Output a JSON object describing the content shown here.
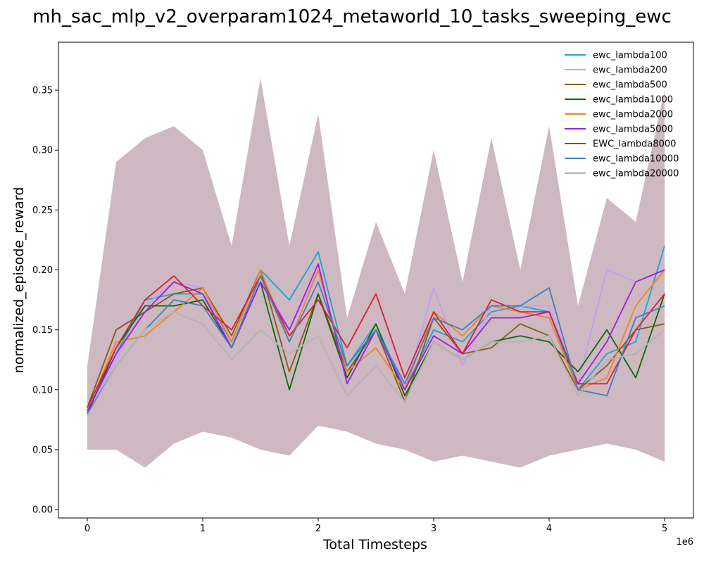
{
  "chart_data": {
    "type": "line",
    "title": "mh_sac_mlp_v2_overparam1024_metaworld_10_tasks_sweeping_ewc",
    "xlabel": "Total Timesteps",
    "ylabel": "normalized_episode_reward",
    "x_offset_text": "1e6",
    "xlim": [
      -0.25,
      5.25
    ],
    "ylim": [
      -0.007,
      0.39
    ],
    "x_ticks": [
      0,
      1,
      2,
      3,
      4,
      5
    ],
    "x_tick_labels": [
      "0",
      "1",
      "2",
      "3",
      "4",
      "5"
    ],
    "y_ticks": [
      0.0,
      0.05,
      0.1,
      0.15,
      0.2,
      0.25,
      0.3,
      0.35
    ],
    "y_tick_labels": [
      "0.00",
      "0.05",
      "0.10",
      "0.15",
      "0.20",
      "0.25",
      "0.30",
      "0.35"
    ],
    "grid": false,
    "legend_position": "top-right",
    "x": [
      0,
      0.25,
      0.5,
      0.75,
      1.0,
      1.25,
      1.5,
      1.75,
      2.0,
      2.25,
      2.5,
      2.75,
      3.0,
      3.25,
      3.5,
      3.75,
      4.0,
      4.25,
      4.5,
      4.75,
      5.0
    ],
    "band": {
      "upper": [
        0.12,
        0.29,
        0.31,
        0.32,
        0.3,
        0.22,
        0.36,
        0.22,
        0.33,
        0.16,
        0.24,
        0.18,
        0.3,
        0.19,
        0.31,
        0.2,
        0.32,
        0.17,
        0.26,
        0.24,
        0.35
      ],
      "lower": [
        0.05,
        0.05,
        0.035,
        0.055,
        0.065,
        0.06,
        0.05,
        0.045,
        0.07,
        0.065,
        0.055,
        0.05,
        0.04,
        0.045,
        0.04,
        0.035,
        0.045,
        0.05,
        0.055,
        0.05,
        0.04
      ]
    },
    "series": [
      {
        "name": "ewc_lambda100",
        "color": "#17a7d6",
        "values": [
          0.083,
          0.13,
          0.175,
          0.18,
          0.18,
          0.14,
          0.2,
          0.175,
          0.215,
          0.12,
          0.155,
          0.1,
          0.15,
          0.14,
          0.165,
          0.17,
          0.165,
          0.1,
          0.13,
          0.14,
          0.22
        ]
      },
      {
        "name": "ewc_lambda200",
        "color": "#c69cf7",
        "values": [
          0.082,
          0.125,
          0.17,
          0.19,
          0.185,
          0.135,
          0.195,
          0.15,
          0.2,
          0.11,
          0.15,
          0.1,
          0.185,
          0.12,
          0.17,
          0.17,
          0.17,
          0.105,
          0.2,
          0.19,
          0.2
        ]
      },
      {
        "name": "ewc_lambda500",
        "color": "#8a5a19",
        "values": [
          0.085,
          0.15,
          0.165,
          0.18,
          0.185,
          0.145,
          0.2,
          0.115,
          0.18,
          0.115,
          0.15,
          0.09,
          0.16,
          0.13,
          0.135,
          0.155,
          0.145,
          0.1,
          0.12,
          0.15,
          0.155
        ]
      },
      {
        "name": "ewc_lambda1000",
        "color": "#0a6b0a",
        "values": [
          0.08,
          0.135,
          0.17,
          0.17,
          0.175,
          0.135,
          0.19,
          0.1,
          0.18,
          0.11,
          0.155,
          0.095,
          0.14,
          0.125,
          0.14,
          0.145,
          0.14,
          0.115,
          0.15,
          0.11,
          0.18
        ]
      },
      {
        "name": "ewc_lambda2000",
        "color": "#f5821f",
        "values": [
          0.083,
          0.14,
          0.145,
          0.165,
          0.185,
          0.14,
          0.2,
          0.14,
          0.2,
          0.115,
          0.135,
          0.1,
          0.165,
          0.145,
          0.17,
          0.165,
          0.16,
          0.1,
          0.11,
          0.17,
          0.2
        ]
      },
      {
        "name": "ewc_lambda5000",
        "color": "#9b1fe0",
        "values": [
          0.082,
          0.13,
          0.165,
          0.19,
          0.18,
          0.135,
          0.19,
          0.15,
          0.205,
          0.105,
          0.15,
          0.1,
          0.145,
          0.13,
          0.16,
          0.16,
          0.165,
          0.105,
          0.14,
          0.19,
          0.2
        ]
      },
      {
        "name": "EWC_lambda8000",
        "color": "#d8203a",
        "values": [
          0.085,
          0.135,
          0.175,
          0.195,
          0.17,
          0.15,
          0.195,
          0.145,
          0.175,
          0.135,
          0.18,
          0.11,
          0.165,
          0.13,
          0.175,
          0.165,
          0.165,
          0.105,
          0.105,
          0.15,
          0.18
        ]
      },
      {
        "name": "ewc_lambda10000",
        "color": "#3f7fbf",
        "values": [
          0.08,
          0.12,
          0.15,
          0.175,
          0.17,
          0.135,
          0.195,
          0.14,
          0.19,
          0.12,
          0.15,
          0.105,
          0.16,
          0.15,
          0.17,
          0.17,
          0.185,
          0.1,
          0.095,
          0.16,
          0.17
        ]
      },
      {
        "name": "ewc_lambda20000",
        "color": "#b3b3b3",
        "values": [
          0.078,
          0.12,
          0.15,
          0.165,
          0.155,
          0.125,
          0.15,
          0.13,
          0.145,
          0.095,
          0.12,
          0.09,
          0.14,
          0.125,
          0.14,
          0.14,
          0.145,
          0.095,
          0.125,
          0.13,
          0.15
        ]
      }
    ]
  }
}
